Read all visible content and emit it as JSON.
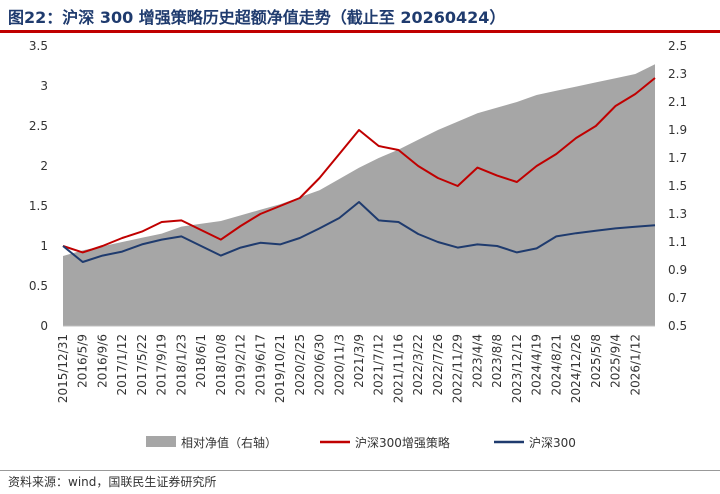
{
  "title": "图22：沪深 300 增强策略历史超额净值走势（截止至 20260424）",
  "source": "资料来源：wind，国联民生证券研究所",
  "colors": {
    "area": "#a6a6a6",
    "enhanced": "#c00000",
    "index": "#1f3b6e",
    "title": "#1f3b6e",
    "rule": "#c00000"
  },
  "chart_data": {
    "type": "line",
    "title": "",
    "xlabel": "",
    "ylabel": "",
    "ylim": [
      0,
      3.5
    ],
    "y2lim": [
      0.5,
      2.5
    ],
    "yticks": [
      "0",
      "0.5",
      "1",
      "1.5",
      "2",
      "2.5",
      "3",
      "3.5"
    ],
    "y2ticks": [
      "0.5",
      "0.7",
      "0.9",
      "1.1",
      "1.3",
      "1.5",
      "1.7",
      "1.9",
      "2.1",
      "2.3",
      "2.5"
    ],
    "xticks": [
      "2015/12/31",
      "2016/5/9",
      "2016/9/6",
      "2017/1/12",
      "2017/5/22",
      "2017/9/19",
      "2018/1/23",
      "2018/6/1",
      "2018/10/8",
      "2019/2/12",
      "2019/6/17",
      "2019/10/21",
      "2020/2/25",
      "2020/6/30",
      "2020/11/3",
      "2021/3/9",
      "2021/7/12",
      "2021/11/16",
      "2022/3/22",
      "2022/7/26",
      "2022/11/29",
      "2023/4/4",
      "2023/8/8",
      "2023/12/12",
      "2024/4/19",
      "2024/8/21",
      "2024/12/26",
      "2025/5/8",
      "2025/9/4",
      "2026/1/12"
    ],
    "legend_position": "bottom",
    "grid": false,
    "x": [
      "2015/12/31",
      "2016/5/9",
      "2016/9/6",
      "2017/1/12",
      "2017/5/22",
      "2017/9/19",
      "2018/1/23",
      "2018/6/1",
      "2018/10/8",
      "2019/2/12",
      "2019/6/17",
      "2019/10/21",
      "2020/2/25",
      "2020/6/30",
      "2020/11/3",
      "2021/3/9",
      "2021/7/12",
      "2021/11/16",
      "2022/3/22",
      "2022/7/26",
      "2022/11/29",
      "2023/4/4",
      "2023/8/8",
      "2023/12/12",
      "2024/4/19",
      "2024/8/21",
      "2024/12/26",
      "2025/5/8",
      "2025/9/4",
      "2026/1/12",
      "2026/4/24"
    ],
    "series": [
      {
        "name": "相对净值（右轴）",
        "type": "area",
        "axis": "right",
        "values": [
          1.0,
          1.04,
          1.07,
          1.1,
          1.13,
          1.16,
          1.21,
          1.23,
          1.25,
          1.29,
          1.33,
          1.37,
          1.42,
          1.47,
          1.55,
          1.63,
          1.7,
          1.76,
          1.83,
          1.9,
          1.96,
          2.02,
          2.06,
          2.1,
          2.15,
          2.18,
          2.21,
          2.24,
          2.27,
          2.3,
          2.37
        ]
      },
      {
        "name": "沪深300增强策略",
        "type": "line",
        "axis": "left",
        "values": [
          1.0,
          0.92,
          1.0,
          1.1,
          1.18,
          1.3,
          1.32,
          1.2,
          1.08,
          1.25,
          1.4,
          1.5,
          1.6,
          1.85,
          2.15,
          2.45,
          2.25,
          2.2,
          2.0,
          1.85,
          1.75,
          1.98,
          1.88,
          1.8,
          2.0,
          2.15,
          2.35,
          2.5,
          2.75,
          2.9,
          3.1
        ]
      },
      {
        "name": "沪深300",
        "type": "line",
        "axis": "left",
        "values": [
          1.0,
          0.8,
          0.88,
          0.93,
          1.02,
          1.08,
          1.12,
          1.0,
          0.88,
          0.98,
          1.04,
          1.02,
          1.1,
          1.22,
          1.35,
          1.55,
          1.32,
          1.3,
          1.15,
          1.05,
          0.98,
          1.02,
          1.0,
          0.92,
          0.97,
          1.12,
          1.16,
          1.19,
          1.22,
          1.24,
          1.26
        ]
      }
    ]
  }
}
